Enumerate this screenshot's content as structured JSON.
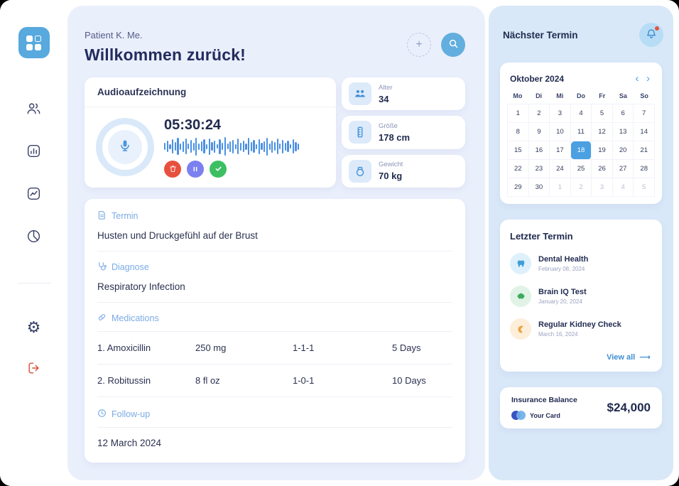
{
  "header": {
    "patient_label": "Patient K. Me.",
    "title": "Willkommen zurück!"
  },
  "icons": {
    "plus": "+",
    "gear": "⚙",
    "calendar_prev": "‹",
    "calendar_next": "›",
    "view_all_arrow": "⟶"
  },
  "audio": {
    "title": "Audioaufzeichnung",
    "timer": "05:30:24"
  },
  "stats": [
    {
      "label": "Alter",
      "value": "34"
    },
    {
      "label": "Größe",
      "value": "178 cm"
    },
    {
      "label": "Gewicht",
      "value": "70 kg"
    }
  ],
  "record": {
    "termin_label": "Termin",
    "termin_text": "Husten und Druckgefühl auf der Brust",
    "diagnose_label": "Diagnose",
    "diagnose_text": "Respiratory Infection",
    "medications_label": "Medications",
    "medications": [
      {
        "name": "1. Amoxicillin",
        "dose": "250 mg",
        "schedule": "1-1-1",
        "duration": "5 Days"
      },
      {
        "name": "2. Robitussin",
        "dose": "8 fl oz",
        "schedule": "1-0-1",
        "duration": "10 Days"
      }
    ],
    "followup_label": "Follow-up",
    "followup_text": "12 March 2024"
  },
  "right_panel": {
    "title": "Nächster Termin",
    "calendar": {
      "month": "Oktober 2024",
      "weekdays": [
        "Mo",
        "Di",
        "Mi",
        "Do",
        "Fr",
        "Sa",
        "So"
      ],
      "cells": [
        {
          "t": "1"
        },
        {
          "t": "2"
        },
        {
          "t": "3"
        },
        {
          "t": "4"
        },
        {
          "t": "5"
        },
        {
          "t": "6"
        },
        {
          "t": "7"
        },
        {
          "t": "8"
        },
        {
          "t": "9"
        },
        {
          "t": "10"
        },
        {
          "t": "11"
        },
        {
          "t": "12"
        },
        {
          "t": "13"
        },
        {
          "t": "14"
        },
        {
          "t": "15"
        },
        {
          "t": "16"
        },
        {
          "t": "17"
        },
        {
          "t": "18",
          "selected": true
        },
        {
          "t": "19"
        },
        {
          "t": "20"
        },
        {
          "t": "21"
        },
        {
          "t": "22"
        },
        {
          "t": "23"
        },
        {
          "t": "24"
        },
        {
          "t": "25"
        },
        {
          "t": "26"
        },
        {
          "t": "27"
        },
        {
          "t": "28"
        },
        {
          "t": "29"
        },
        {
          "t": "30"
        },
        {
          "t": "1",
          "muted": true
        },
        {
          "t": "2",
          "muted": true
        },
        {
          "t": "3",
          "muted": true
        },
        {
          "t": "4",
          "muted": true
        },
        {
          "t": "5",
          "muted": true
        }
      ]
    },
    "appointments": {
      "title": "Letzter Termin",
      "items": [
        {
          "name": "Dental Health",
          "date": "February 08, 2024"
        },
        {
          "name": "Brain IQ Test",
          "date": "January 20, 2024"
        },
        {
          "name": "Regular Kidney Check",
          "date": "March 16, 2024"
        }
      ],
      "view_all": "View all"
    },
    "insurance": {
      "label": "Insurance Balance",
      "card_name": "Your Card",
      "amount": "$24,000"
    }
  }
}
